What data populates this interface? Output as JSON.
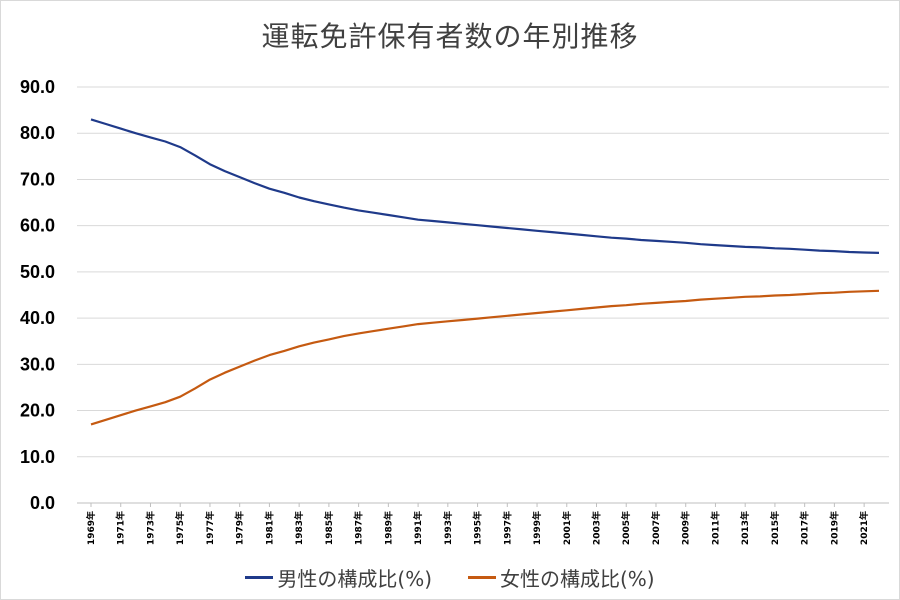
{
  "chart_data": {
    "type": "line",
    "title": "運転免許保有者数の年別推移",
    "ylim": [
      0,
      90
    ],
    "yticks": [
      "0.0",
      "10.0",
      "20.0",
      "30.0",
      "40.0",
      "50.0",
      "60.0",
      "70.0",
      "80.0",
      "90.0"
    ],
    "x": [
      1969,
      1970,
      1971,
      1972,
      1973,
      1974,
      1975,
      1976,
      1977,
      1978,
      1979,
      1980,
      1981,
      1982,
      1983,
      1984,
      1985,
      1986,
      1987,
      1988,
      1989,
      1990,
      1991,
      1992,
      1993,
      1994,
      1995,
      1996,
      1997,
      1998,
      1999,
      2000,
      2001,
      2002,
      2003,
      2004,
      2005,
      2006,
      2007,
      2008,
      2009,
      2010,
      2011,
      2012,
      2013,
      2014,
      2015,
      2016,
      2017,
      2018,
      2019,
      2020,
      2021,
      2022
    ],
    "xtick_labels": [
      "1969年",
      "1971年",
      "1973年",
      "1975年",
      "1977年",
      "1979年",
      "1981年",
      "1983年",
      "1985年",
      "1987年",
      "1989年",
      "1991年",
      "1993年",
      "1995年",
      "1997年",
      "1999年",
      "2001年",
      "2003年",
      "2005年",
      "2007年",
      "2009年",
      "2011年",
      "2013年",
      "2015年",
      "2017年",
      "2019年",
      "2021年"
    ],
    "grid": true,
    "legend_position": "bottom",
    "series": [
      {
        "name": "男性の構成比(%)",
        "color": "#1f3a8a",
        "values": [
          83.0,
          82.0,
          81.0,
          80.0,
          79.1,
          78.2,
          77.0,
          75.2,
          73.3,
          71.8,
          70.5,
          69.2,
          68.0,
          67.1,
          66.1,
          65.3,
          64.6,
          63.9,
          63.3,
          62.8,
          62.3,
          61.8,
          61.3,
          61.0,
          60.7,
          60.4,
          60.1,
          59.8,
          59.5,
          59.2,
          58.9,
          58.6,
          58.3,
          58.0,
          57.7,
          57.4,
          57.2,
          56.9,
          56.7,
          56.5,
          56.3,
          56.0,
          55.8,
          55.6,
          55.4,
          55.3,
          55.1,
          55.0,
          54.8,
          54.6,
          54.5,
          54.3,
          54.2,
          54.1
        ]
      },
      {
        "name": "女性の構成比(%)",
        "color": "#c55a11",
        "values": [
          17.0,
          18.0,
          19.0,
          20.0,
          20.9,
          21.8,
          23.0,
          24.8,
          26.7,
          28.2,
          29.5,
          30.8,
          32.0,
          32.9,
          33.9,
          34.7,
          35.4,
          36.1,
          36.7,
          37.2,
          37.7,
          38.2,
          38.7,
          39.0,
          39.3,
          39.6,
          39.9,
          40.2,
          40.5,
          40.8,
          41.1,
          41.4,
          41.7,
          42.0,
          42.3,
          42.6,
          42.8,
          43.1,
          43.3,
          43.5,
          43.7,
          44.0,
          44.2,
          44.4,
          44.6,
          44.7,
          44.9,
          45.0,
          45.2,
          45.4,
          45.5,
          45.7,
          45.8,
          45.9
        ]
      }
    ]
  }
}
